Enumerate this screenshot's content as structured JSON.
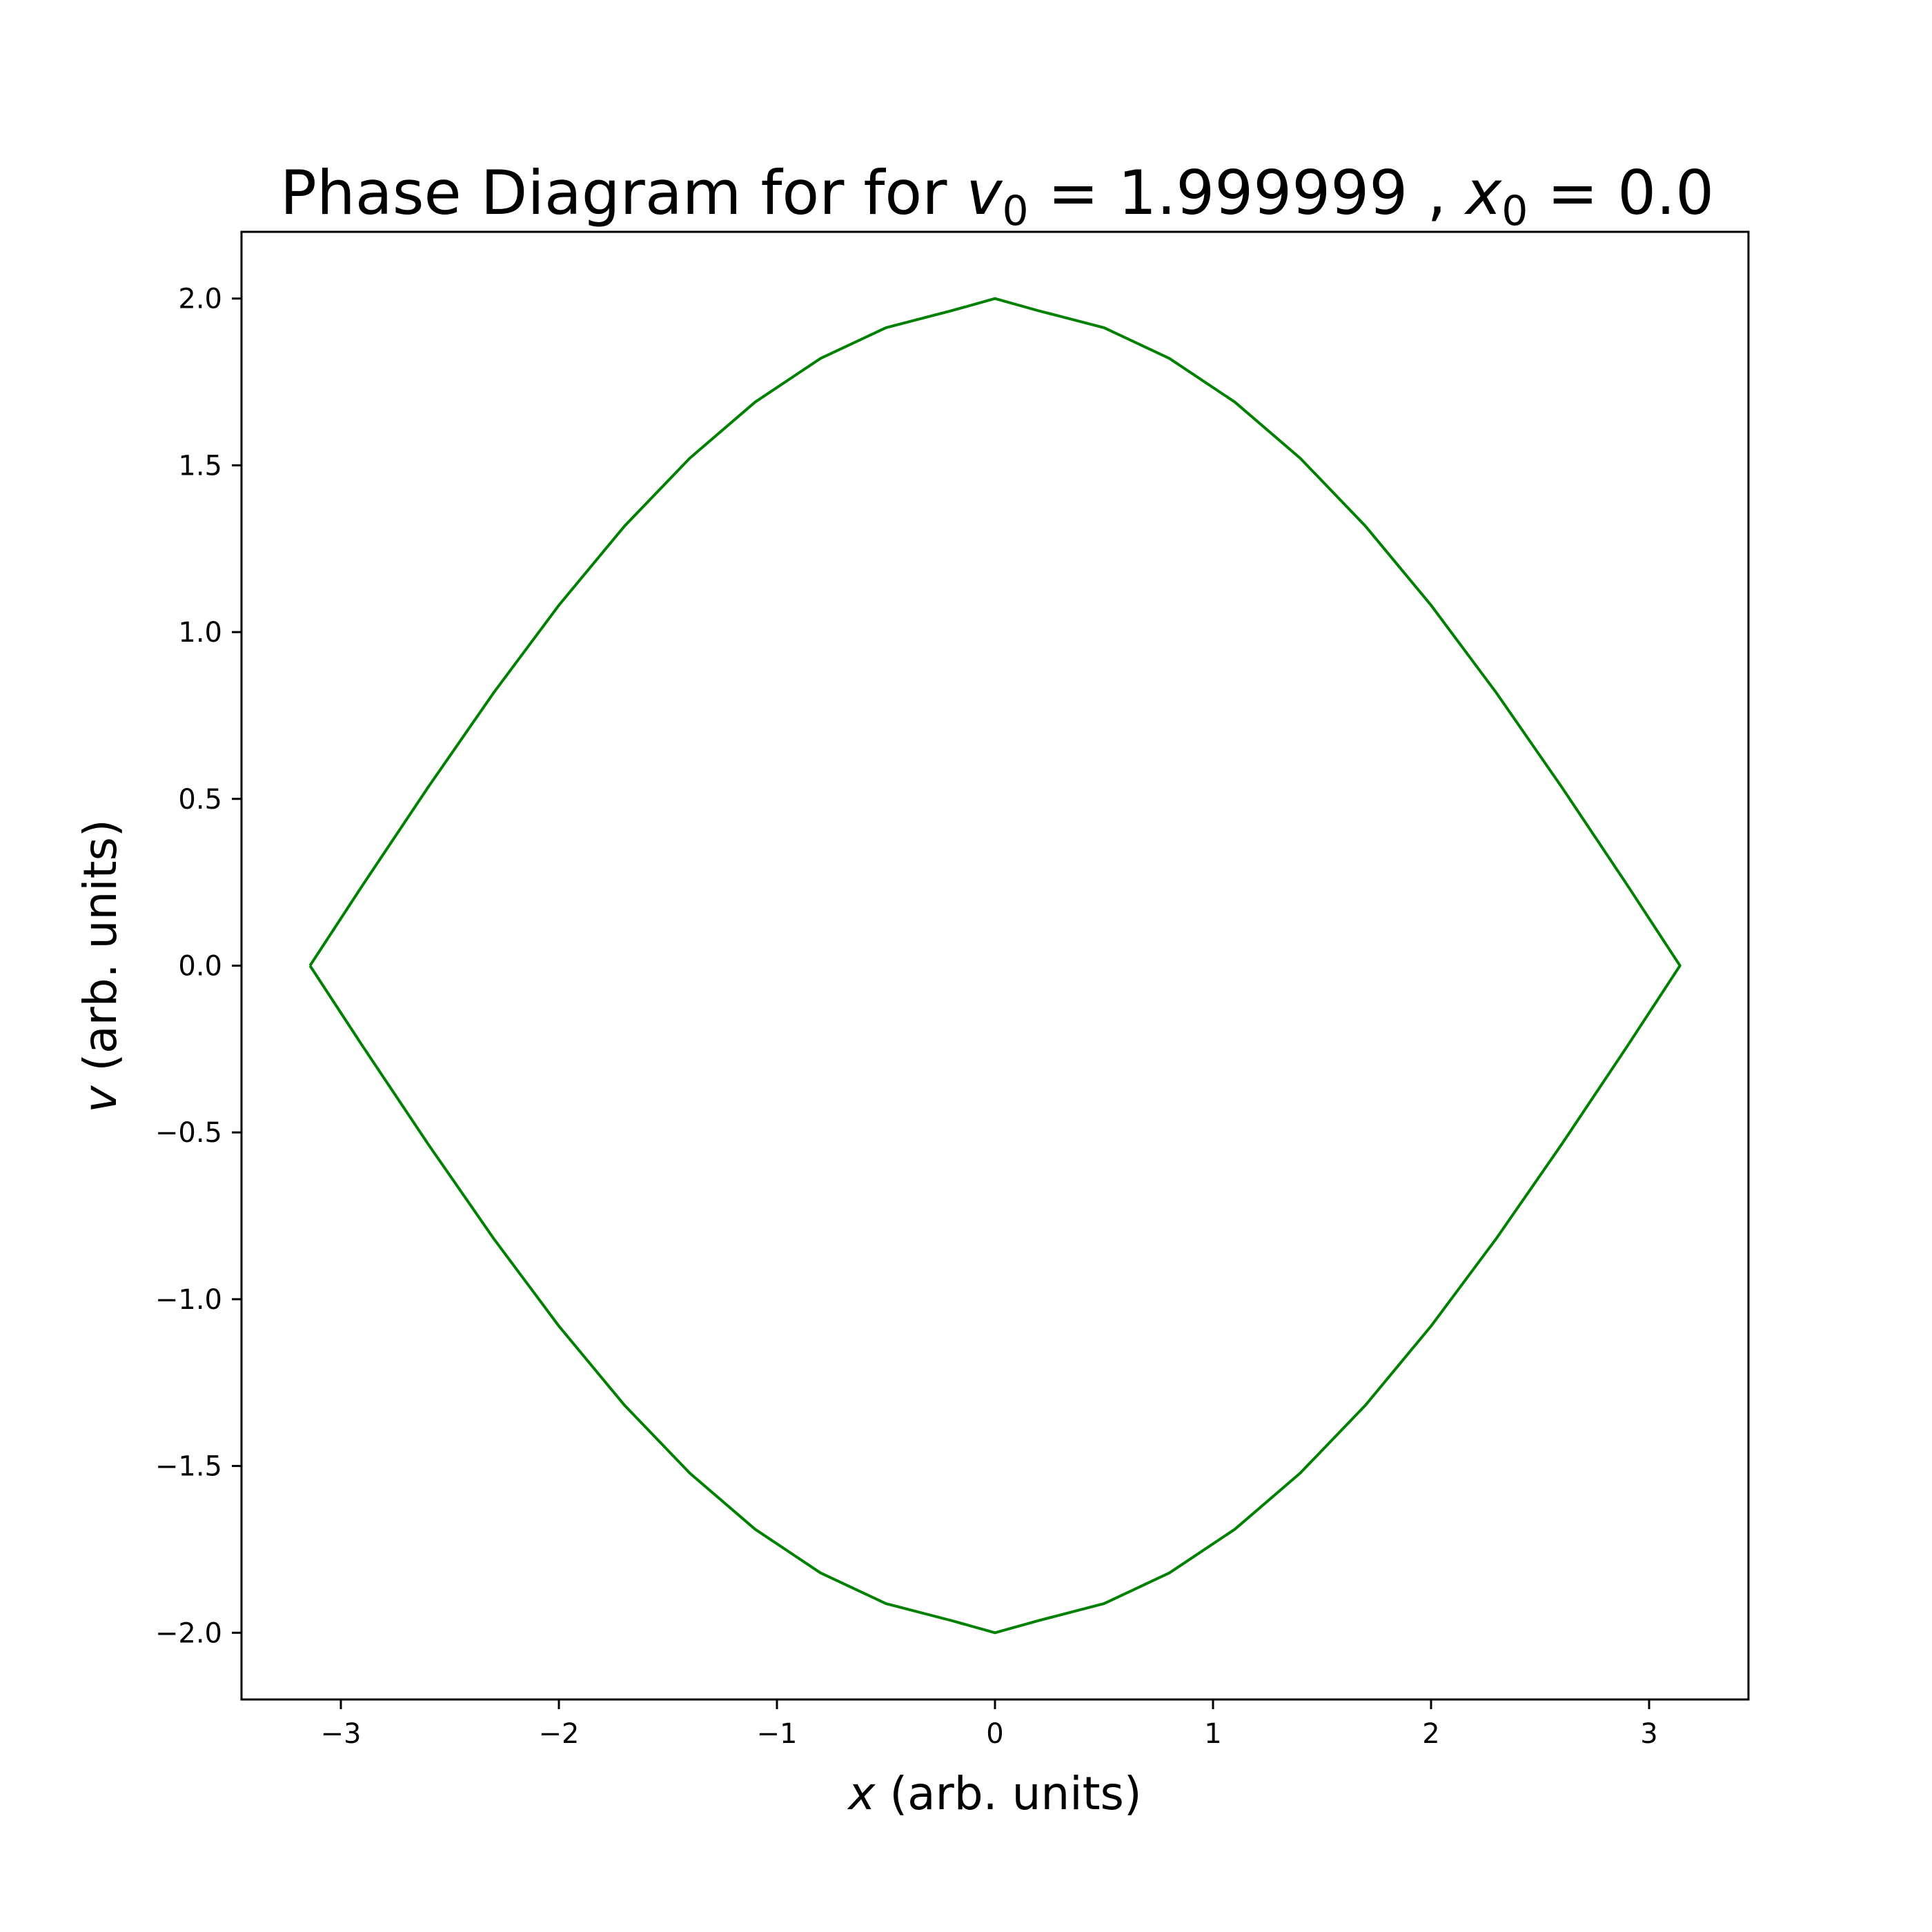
{
  "chart_data": {
    "type": "line",
    "title": {
      "prefix": "Phase Diagram for for ",
      "v_symbol": "v",
      "v_subscript": "0",
      "v_value": " = 1.999999",
      "separator": " , ",
      "x_symbol": "x",
      "x_subscript": "0",
      "x_value": " = 0.0"
    },
    "xlabel": {
      "symbol": "x",
      "text": " (arb. units)"
    },
    "ylabel": {
      "symbol": "v",
      "text": " (arb. units)"
    },
    "xlim": [
      -3.4557,
      3.4557
    ],
    "ylim": [
      -2.2,
      2.2
    ],
    "x_ticks": [
      -3,
      -2,
      -1,
      0,
      1,
      2,
      3
    ],
    "x_tick_labels": [
      "−3",
      "−2",
      "−1",
      "0",
      "1",
      "2",
      "3"
    ],
    "y_ticks": [
      2.0,
      1.5,
      1.0,
      0.5,
      0.0,
      -0.5,
      -1.0,
      -1.5,
      -2.0
    ],
    "y_tick_labels": [
      "2.0",
      "1.5",
      "1.0",
      "0.5",
      "0.0",
      "−0.5",
      "−1.0",
      "−1.5",
      "−2.0"
    ],
    "grid": false,
    "legend": "none",
    "series": [
      {
        "color": "#008000",
        "x": [
          -3.1416,
          -2.9,
          -2.6,
          -2.3,
          -2.0,
          -1.7,
          -1.4,
          -1.1,
          -0.8,
          -0.5,
          -0.2,
          0.0,
          0.2,
          0.5,
          0.8,
          1.1,
          1.4,
          1.7,
          2.0,
          2.3,
          2.6,
          2.9,
          3.1416,
          2.9,
          2.6,
          2.3,
          2.0,
          1.7,
          1.4,
          1.1,
          0.8,
          0.5,
          0.2,
          0.0,
          -0.2,
          -0.5,
          -0.8,
          -1.1,
          -1.4,
          -1.7,
          -2.0,
          -2.3,
          -2.6,
          -2.9,
          -3.1416
        ],
        "y": [
          0.0,
          0.2414,
          0.5347,
          0.8174,
          1.0806,
          1.3171,
          1.5213,
          1.6897,
          1.8205,
          1.9126,
          1.9634,
          2.0,
          1.9634,
          1.9126,
          1.8205,
          1.6897,
          1.5213,
          1.3171,
          1.0806,
          0.8174,
          0.5347,
          0.2414,
          0.0,
          -0.2414,
          -0.5347,
          -0.8174,
          -1.0806,
          -1.3171,
          -1.5213,
          -1.6897,
          -1.8205,
          -1.9126,
          -1.9634,
          -2.0,
          -1.9634,
          -1.9126,
          -1.8205,
          -1.6897,
          -1.5213,
          -1.3171,
          -1.0806,
          -0.8174,
          -0.5347,
          -0.2414,
          0.0
        ]
      }
    ]
  }
}
